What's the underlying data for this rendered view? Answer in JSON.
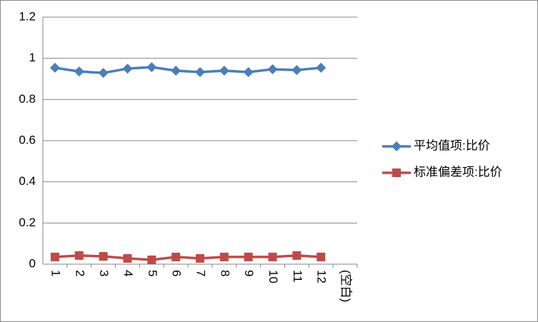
{
  "chart_data": {
    "type": "line",
    "categories": [
      "1",
      "2",
      "3",
      "4",
      "5",
      "6",
      "7",
      "8",
      "9",
      "10",
      "11",
      "12",
      "(空白)"
    ],
    "series": [
      {
        "name": "平均值项:比价",
        "color": "#4a7ebb",
        "marker": "diamond",
        "values": [
          0.954,
          0.936,
          0.929,
          0.95,
          0.957,
          0.94,
          0.933,
          0.94,
          0.933,
          0.947,
          0.943,
          0.954,
          null
        ]
      },
      {
        "name": "标准偏差项:比价",
        "color": "#be4b48",
        "marker": "square",
        "values": [
          0.035,
          0.042,
          0.038,
          0.028,
          0.021,
          0.035,
          0.028,
          0.035,
          0.035,
          0.035,
          0.042,
          0.035,
          null
        ]
      }
    ],
    "ylim": [
      0,
      1.2
    ],
    "yticks": [
      0,
      0.2,
      0.4,
      0.6,
      0.8,
      1,
      1.2
    ],
    "grid": true,
    "legend": "right"
  }
}
